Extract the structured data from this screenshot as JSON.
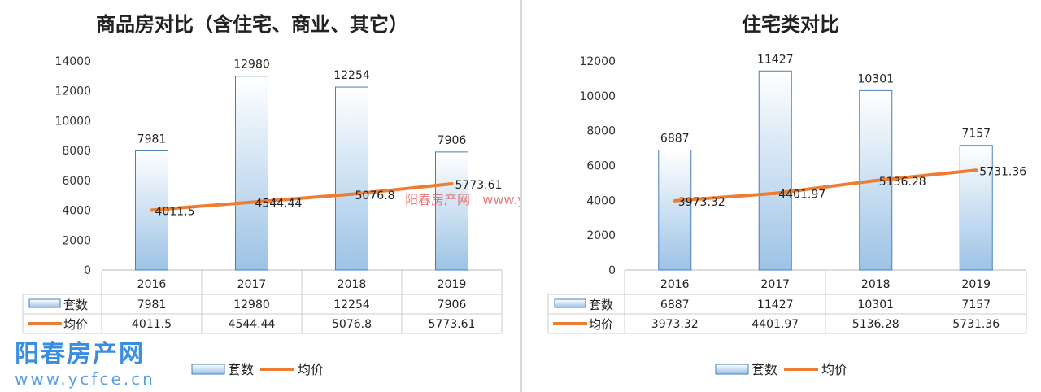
{
  "chart_data": [
    {
      "type": "bar",
      "title": "商品房对比（含住宅、商业、其它）",
      "categories": [
        "2016",
        "2017",
        "2018",
        "2019"
      ],
      "ylim": [
        0,
        14000
      ],
      "yticks": [
        0,
        2000,
        4000,
        6000,
        8000,
        10000,
        12000,
        14000
      ],
      "grid": false,
      "legend": "bottom",
      "series": [
        {
          "name": "套数",
          "type": "bar",
          "values": [
            7981,
            12980,
            12254,
            7906
          ],
          "labels": [
            "7981",
            "12980",
            "12254",
            "7906"
          ],
          "color": "#9cc3e6"
        },
        {
          "name": "均价",
          "type": "line",
          "values": [
            4011.5,
            4544.44,
            5076.8,
            5773.61
          ],
          "labels": [
            "4011.5",
            "4544.44",
            "5076.8",
            "5773.61"
          ],
          "color": "#ed7d31"
        }
      ],
      "data_table": true
    },
    {
      "type": "bar",
      "title": "住宅类对比",
      "categories": [
        "2016",
        "2017",
        "2018",
        "2019"
      ],
      "ylim": [
        0,
        12000
      ],
      "yticks": [
        0,
        2000,
        4000,
        6000,
        8000,
        10000,
        12000
      ],
      "grid": false,
      "legend": "bottom",
      "series": [
        {
          "name": "套数",
          "type": "bar",
          "values": [
            6887,
            11427,
            10301,
            7157
          ],
          "labels": [
            "6887",
            "11427",
            "10301",
            "7157"
          ],
          "color": "#9cc3e6"
        },
        {
          "name": "均价",
          "type": "line",
          "values": [
            3973.32,
            4401.97,
            5136.28,
            5731.36
          ],
          "labels": [
            "3973.32",
            "4401.97",
            "5136.28",
            "5731.36"
          ],
          "color": "#ed7d31"
        }
      ],
      "data_table": true
    }
  ],
  "watermark": {
    "name": "阳春房产网",
    "url": "www.ycfce.cn",
    "inline": "阳春房产网   www.ycfce.cn"
  }
}
